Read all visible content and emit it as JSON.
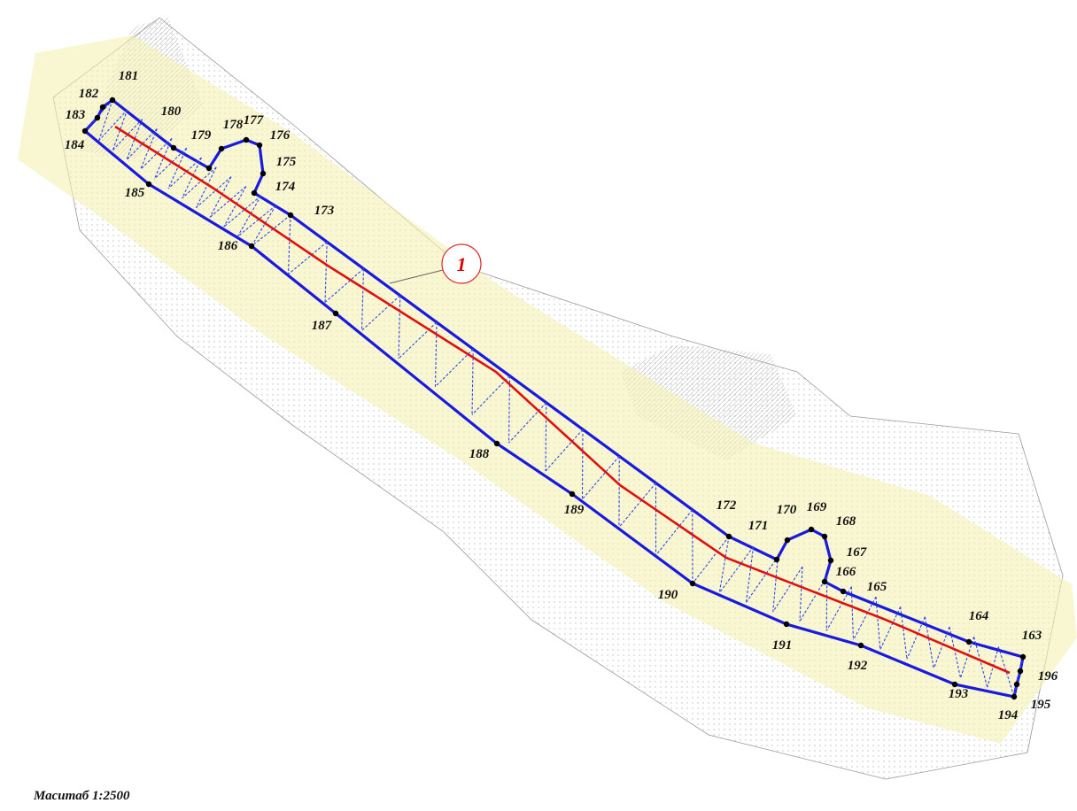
{
  "scale": "Маситаб 1:2500",
  "plot_label": "1",
  "points": [
    "181",
    "182",
    "183",
    "184",
    "180",
    "179",
    "178",
    "177",
    "176",
    "175",
    "174",
    "173",
    "185",
    "186",
    "187",
    "188",
    "189",
    "190",
    "172",
    "171",
    "170",
    "169",
    "168",
    "167",
    "166",
    "165",
    "191",
    "192",
    "164",
    "163",
    "196",
    "195",
    "194",
    "193"
  ]
}
